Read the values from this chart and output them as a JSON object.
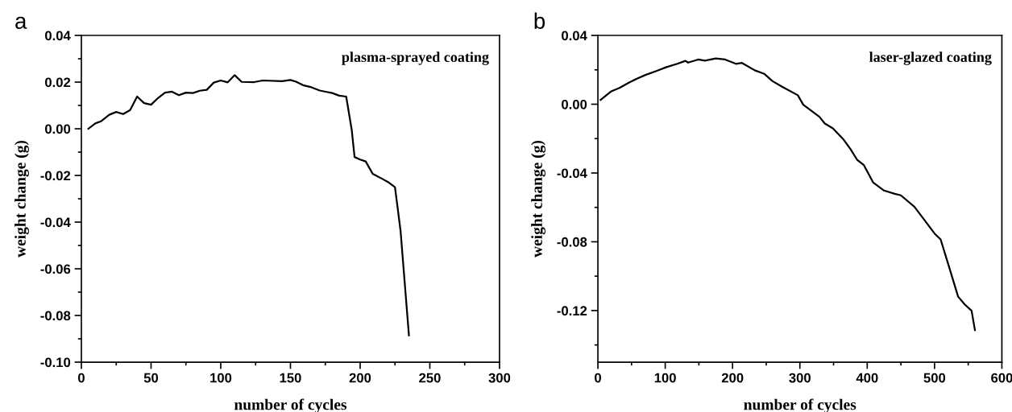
{
  "chart_data": [
    {
      "type": "line",
      "title": "a",
      "xlabel": "number of cycles",
      "ylabel": "weight change (g)",
      "annotations": [
        "plasma-sprayed coating"
      ],
      "xlim": [
        0,
        300
      ],
      "ylim": [
        -0.1,
        0.04
      ],
      "xticks": [
        0,
        {
          "value": 25,
          "label": null
        },
        50,
        {
          "value": 75,
          "label": null
        },
        100,
        {
          "value": 125,
          "label": null
        },
        150,
        {
          "value": 175,
          "label": null
        },
        200,
        {
          "value": 225,
          "label": null
        },
        250,
        {
          "value": 275,
          "label": null
        },
        300
      ],
      "yticks": [
        {
          "value": -0.1,
          "label": "-0.10"
        },
        {
          "value": -0.09,
          "label": null
        },
        {
          "value": -0.08,
          "label": "-0.08"
        },
        {
          "value": -0.07,
          "label": null
        },
        {
          "value": -0.06,
          "label": "-0.06"
        },
        {
          "value": -0.05,
          "label": null
        },
        {
          "value": -0.04,
          "label": "-0.04"
        },
        {
          "value": -0.03,
          "label": null
        },
        {
          "value": -0.02,
          "label": "-0.02"
        },
        {
          "value": -0.01,
          "label": null
        },
        {
          "value": 0.0,
          "label": "0.00"
        },
        {
          "value": 0.01,
          "label": null
        },
        {
          "value": 0.02,
          "label": "0.02"
        },
        {
          "value": 0.03,
          "label": null
        },
        {
          "value": 0.04,
          "label": "0.04"
        }
      ],
      "series": [
        {
          "color": "#000000",
          "x": [
            5,
            10,
            14,
            20,
            25,
            30,
            35,
            40,
            45,
            50,
            55,
            60,
            65,
            70,
            75,
            80,
            85,
            90,
            95,
            100,
            105,
            110,
            115,
            124,
            130,
            144,
            150,
            154,
            159,
            165,
            171,
            176,
            180,
            185,
            190,
            194,
            196,
            200,
            204,
            209,
            216,
            220,
            225,
            229,
            235
          ],
          "values": [
            0.0,
            0.0023,
            0.0032,
            0.006,
            0.0072,
            0.0063,
            0.008,
            0.0138,
            0.011,
            0.0103,
            0.0132,
            0.0155,
            0.0159,
            0.0144,
            0.0155,
            0.0153,
            0.0163,
            0.0167,
            0.0198,
            0.0207,
            0.0199,
            0.023,
            0.0201,
            0.02,
            0.0207,
            0.0204,
            0.0209,
            0.0202,
            0.0187,
            0.0178,
            0.0164,
            0.0158,
            0.0153,
            0.0142,
            0.0138,
            -0.0006,
            -0.0121,
            -0.0132,
            -0.014,
            -0.0193,
            -0.0215,
            -0.0228,
            -0.025,
            -0.0437,
            -0.0885
          ]
        }
      ]
    },
    {
      "type": "line",
      "title": "b",
      "xlabel": "number of cycles",
      "ylabel": "weight change (g)",
      "annotations": [
        "laser-glazed coating"
      ],
      "xlim": [
        0,
        600
      ],
      "ylim": [
        -0.15,
        0.04
      ],
      "xticks": [
        0,
        {
          "value": 50,
          "label": null
        },
        100,
        {
          "value": 150,
          "label": null
        },
        200,
        {
          "value": 250,
          "label": null
        },
        300,
        {
          "value": 350,
          "label": null
        },
        400,
        {
          "value": 450,
          "label": null
        },
        500,
        {
          "value": 550,
          "label": null
        },
        600
      ],
      "yticks": [
        {
          "value": -0.14,
          "label": null
        },
        {
          "value": -0.12,
          "label": "-0.12"
        },
        {
          "value": -0.1,
          "label": null
        },
        {
          "value": -0.08,
          "label": "-0.08"
        },
        {
          "value": -0.06,
          "label": null
        },
        {
          "value": -0.04,
          "label": "-0.04"
        },
        {
          "value": -0.02,
          "label": null
        },
        {
          "value": 0.0,
          "label": "0.00"
        },
        {
          "value": 0.02,
          "label": null
        },
        {
          "value": 0.04,
          "label": "0.04"
        }
      ],
      "series": [
        {
          "color": "#000000",
          "x": [
            4,
            20,
            32,
            46,
            58,
            70,
            86,
            102,
            118,
            130,
            134,
            149,
            159,
            175,
            189,
            205,
            214,
            233,
            247,
            259,
            273,
            297,
            305,
            329,
            337,
            349,
            365,
            375,
            385,
            395,
            409,
            425,
            441,
            450,
            470,
            482,
            500,
            509,
            521,
            535,
            545,
            555,
            560
          ],
          "values": [
            0.0025,
            0.0075,
            0.0095,
            0.0125,
            0.0149,
            0.0169,
            0.0192,
            0.0216,
            0.0235,
            0.0252,
            0.0242,
            0.026,
            0.0253,
            0.0266,
            0.026,
            0.0235,
            0.024,
            0.0197,
            0.0177,
            0.0135,
            0.0103,
            0.0052,
            -0.0003,
            -0.0073,
            -0.0112,
            -0.014,
            -0.0206,
            -0.026,
            -0.0323,
            -0.0354,
            -0.0456,
            -0.0502,
            -0.0521,
            -0.053,
            -0.0596,
            -0.0658,
            -0.0752,
            -0.0786,
            -0.0939,
            -0.1119,
            -0.1165,
            -0.1201,
            -0.1314
          ]
        }
      ]
    }
  ]
}
